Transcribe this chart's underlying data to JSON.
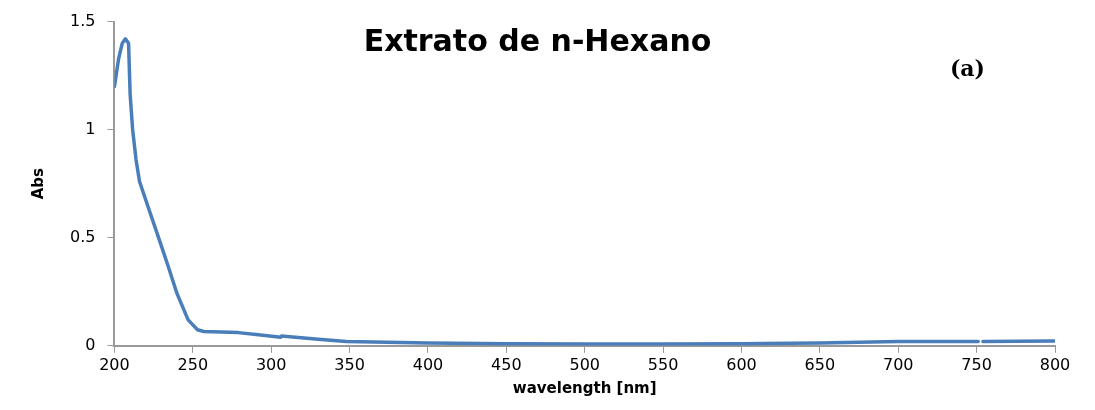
{
  "chart_data": {
    "type": "line",
    "title": "Extrato de n-Hexano",
    "xlabel": "wavelength [nm]",
    "ylabel": "Abs",
    "annotations": [
      "(a)"
    ],
    "xlim": [
      200,
      800
    ],
    "xticks": [
      200,
      250,
      300,
      350,
      400,
      450,
      500,
      550,
      600,
      650,
      700,
      750,
      800
    ],
    "ylim": [
      0,
      1.5
    ],
    "yticks": [
      0,
      0.5,
      1,
      1.5
    ],
    "grid": false,
    "legend": false,
    "marker": "none",
    "line_style": "solid",
    "series": [
      {
        "color": "#4a7ebb",
        "x": [
          200,
          202.7,
          205,
          207,
          209,
          210,
          211.6,
          213.8,
          216,
          221.6,
          227,
          234,
          240,
          247,
          253,
          257,
          279,
          306,
          306.5,
          330,
          348,
          400,
          450,
          500,
          550,
          600,
          650,
          700,
          751,
          752,
          754,
          800
        ],
        "values": [
          1.2,
          1.33,
          1.4,
          1.42,
          1.4,
          1.165,
          1.0,
          0.86,
          0.76,
          0.64,
          0.525,
          0.374,
          0.24,
          0.12,
          0.074,
          0.066,
          0.061,
          0.04,
          0.045,
          0.03,
          0.02,
          0.013,
          0.01,
          0.008,
          0.008,
          0.01,
          0.013,
          0.02,
          0.02,
          null,
          0.02,
          0.022
        ]
      }
    ]
  }
}
